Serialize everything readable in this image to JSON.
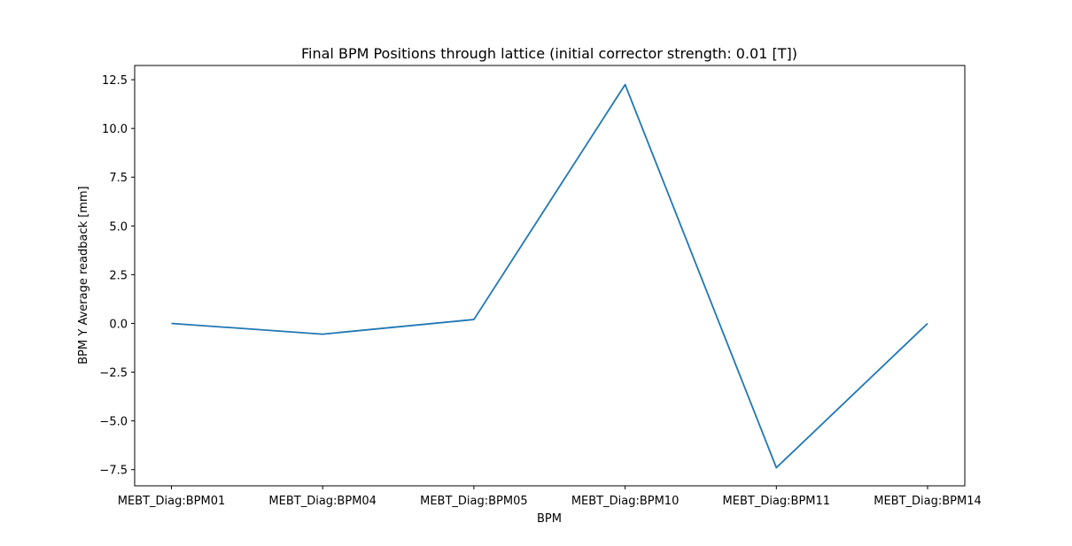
{
  "chart_data": {
    "type": "line",
    "title": "Final BPM Positions through lattice (initial corrector strength: 0.01 [T])",
    "xlabel": "BPM",
    "ylabel": "BPM Y Average readback [mm]",
    "categories": [
      "MEBT_Diag:BPM01",
      "MEBT_Diag:BPM04",
      "MEBT_Diag:BPM05",
      "MEBT_Diag:BPM10",
      "MEBT_Diag:BPM11",
      "MEBT_Diag:BPM14"
    ],
    "series": [
      {
        "values": [
          0.0,
          -0.55,
          0.2,
          12.25,
          -7.4,
          0.0
        ],
        "color": "#1f77b4"
      }
    ],
    "yticks": [
      -7.5,
      -5.0,
      -2.5,
      0.0,
      2.5,
      5.0,
      7.5,
      10.0,
      12.5
    ],
    "ytick_labels": [
      "−7.5",
      "−5.0",
      "−2.5",
      "0.0",
      "2.5",
      "5.0",
      "7.5",
      "10.0",
      "12.5"
    ],
    "ylim": [
      -8.33,
      13.23
    ],
    "grid": false,
    "legend": false
  }
}
